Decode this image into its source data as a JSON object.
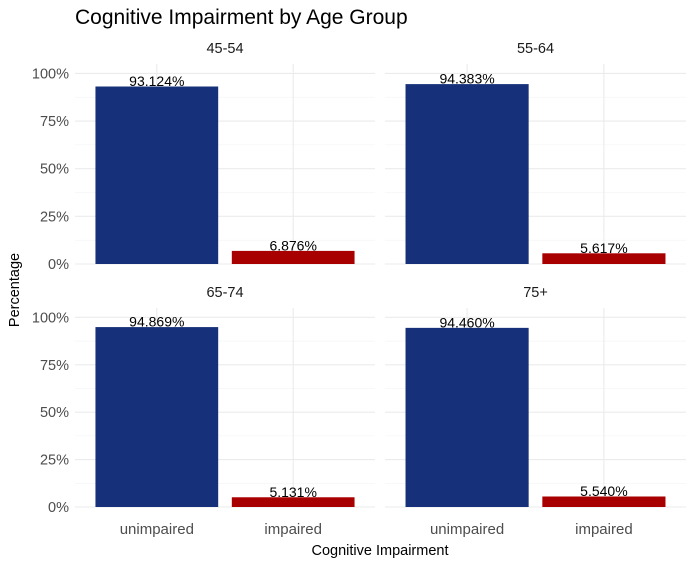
{
  "chart_data": {
    "type": "bar",
    "title": "Cognitive Impairment by Age Group",
    "xlabel": "Cognitive Impairment",
    "ylabel": "Percentage",
    "categories": [
      "unimpaired",
      "impaired"
    ],
    "ylim": [
      0,
      100
    ],
    "yticks": [
      "0%",
      "25%",
      "50%",
      "75%",
      "100%"
    ],
    "colors": {
      "unimpaired": "#16317a",
      "impaired": "#a80000"
    },
    "grid": true,
    "facets": [
      {
        "name": "45-54",
        "values": [
          93.124,
          6.876
        ],
        "labels": [
          "93.124%",
          "6.876%"
        ]
      },
      {
        "name": "55-64",
        "values": [
          94.383,
          5.617
        ],
        "labels": [
          "94.383%",
          "5.617%"
        ]
      },
      {
        "name": "65-74",
        "values": [
          94.869,
          5.131
        ],
        "labels": [
          "94.869%",
          "5.131%"
        ]
      },
      {
        "name": "75+",
        "values": [
          94.46,
          5.54
        ],
        "labels": [
          "94.460%",
          "5.540%"
        ]
      }
    ]
  }
}
